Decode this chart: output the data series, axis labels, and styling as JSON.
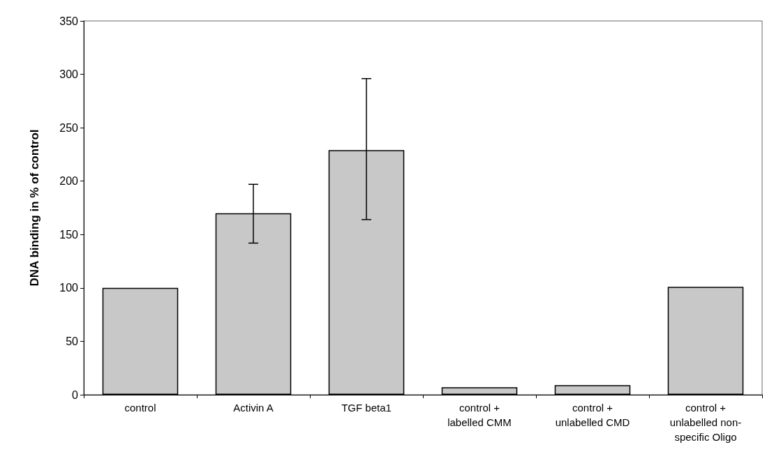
{
  "chart_data": {
    "type": "bar",
    "ylabel": "DNA binding in % of control",
    "categories": [
      "control",
      "Activin A",
      "TGF beta1",
      "control +\nlabelled CMM",
      "control +\nunlabelled CMD",
      "control +\nunlabelled non-\nspecific Oligo"
    ],
    "values": [
      100,
      170,
      229,
      7,
      9,
      101
    ],
    "errors": [
      null,
      [
        142,
        197
      ],
      [
        164,
        296
      ],
      null,
      null,
      null
    ],
    "color": "#c8c8c8",
    "ylim": [
      0,
      350
    ],
    "yticks": [
      0,
      50,
      100,
      150,
      200,
      250,
      300,
      350
    ],
    "grid": false
  }
}
